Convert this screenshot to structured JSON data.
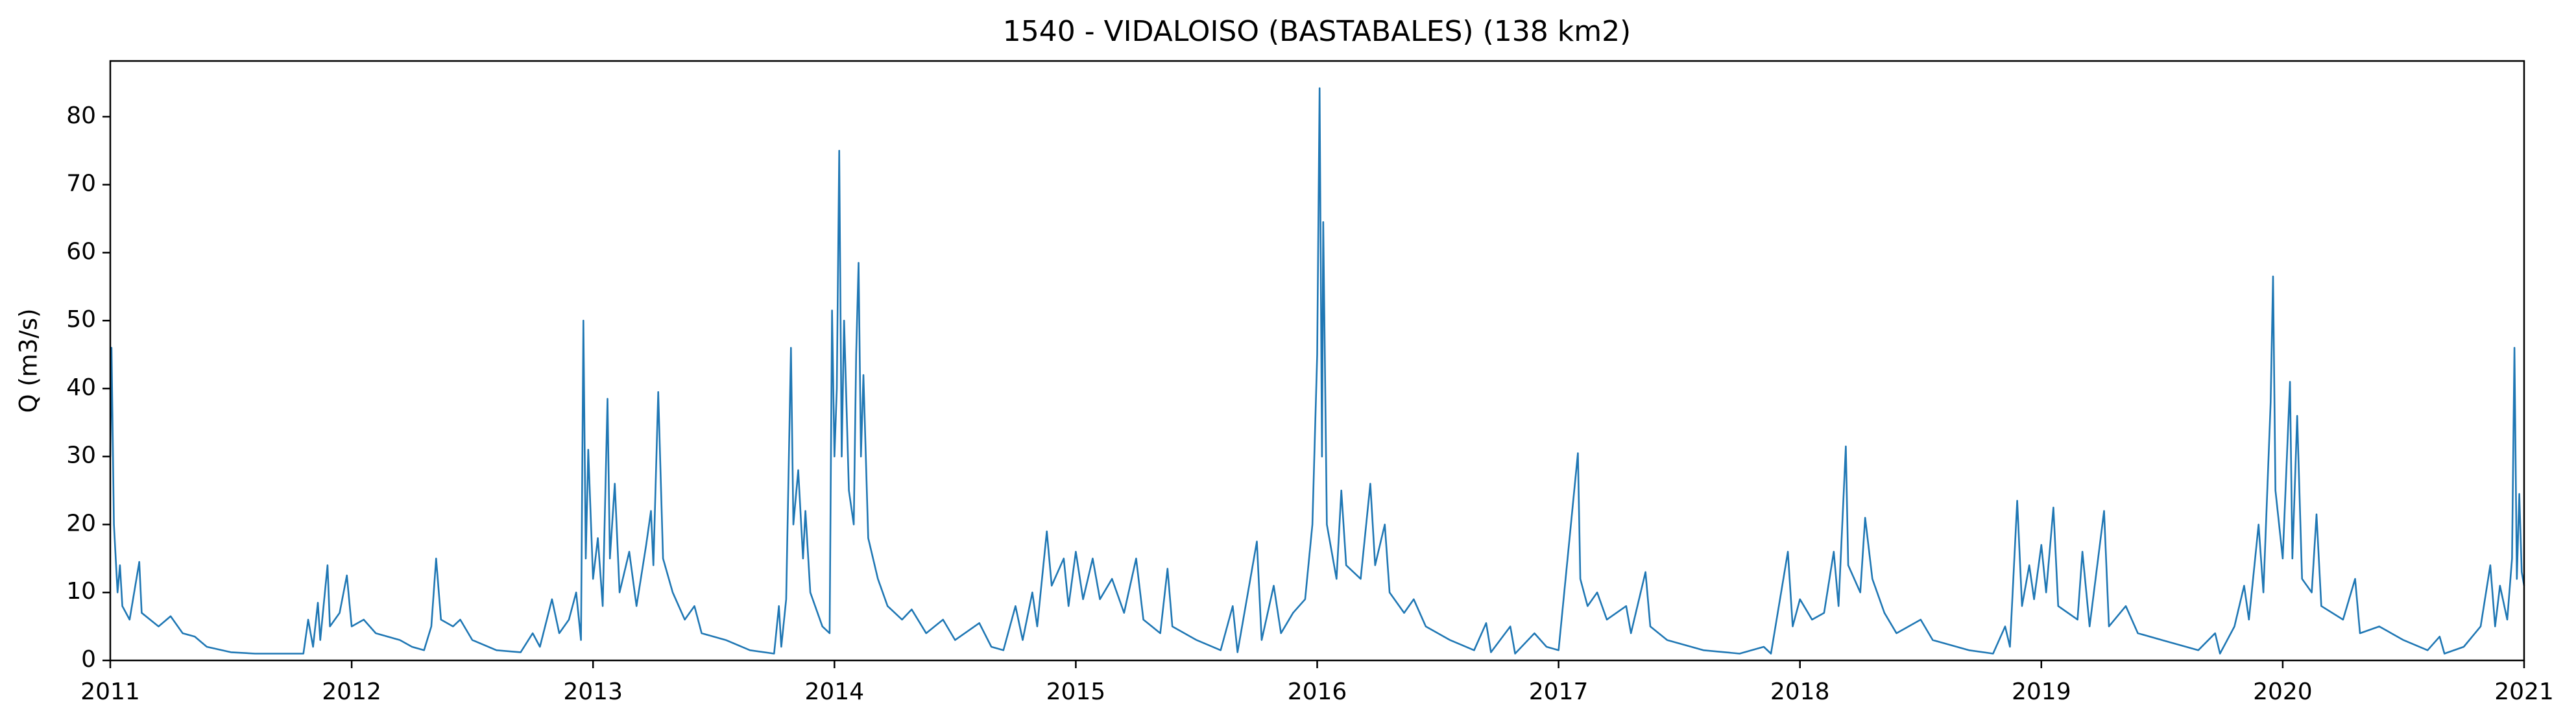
{
  "chart_data": {
    "type": "line",
    "title": "1540 - VIDALOISO (BASTABALES) (138 km2)",
    "y_label": "Q (m3/s)",
    "xlim": [
      2011,
      2021
    ],
    "xticks": [
      2011,
      2012,
      2013,
      2014,
      2015,
      2016,
      2017,
      2018,
      2019,
      2020,
      2021
    ],
    "ylim": [
      0,
      88.2
    ],
    "yticks": [
      0,
      10,
      20,
      30,
      40,
      50,
      60,
      70,
      80
    ],
    "grid": false,
    "x": [
      2011.0,
      2011.005,
      2011.015,
      2011.03,
      2011.04,
      2011.05,
      2011.08,
      2011.12,
      2011.13,
      2011.2,
      2011.25,
      2011.3,
      2011.35,
      2011.4,
      2011.5,
      2011.6,
      2011.7,
      2011.8,
      2011.82,
      2011.84,
      2011.86,
      2011.87,
      2011.9,
      2011.91,
      2011.95,
      2011.98,
      2012.0,
      2012.05,
      2012.1,
      2012.2,
      2012.25,
      2012.3,
      2012.33,
      2012.35,
      2012.37,
      2012.42,
      2012.45,
      2012.5,
      2012.6,
      2012.7,
      2012.75,
      2012.78,
      2012.83,
      2012.86,
      2012.9,
      2012.93,
      2012.95,
      2012.96,
      2012.97,
      2012.98,
      2013.0,
      2013.02,
      2013.04,
      2013.06,
      2013.07,
      2013.09,
      2013.11,
      2013.15,
      2013.18,
      2013.22,
      2013.24,
      2013.25,
      2013.27,
      2013.29,
      2013.33,
      2013.38,
      2013.42,
      2013.45,
      2013.55,
      2013.65,
      2013.75,
      2013.77,
      2013.78,
      2013.8,
      2013.82,
      2013.83,
      2013.85,
      2013.87,
      2013.88,
      2013.9,
      2013.95,
      2013.98,
      2013.99,
      2014.0,
      2014.01,
      2014.02,
      2014.03,
      2014.04,
      2014.06,
      2014.08,
      2014.09,
      2014.1,
      2014.11,
      2014.12,
      2014.14,
      2014.18,
      2014.22,
      2014.28,
      2014.32,
      2014.38,
      2014.45,
      2014.5,
      2014.6,
      2014.65,
      2014.7,
      2014.75,
      2014.78,
      2014.82,
      2014.84,
      2014.88,
      2014.9,
      2014.95,
      2014.97,
      2015.0,
      2015.03,
      2015.07,
      2015.1,
      2015.15,
      2015.2,
      2015.25,
      2015.28,
      2015.35,
      2015.38,
      2015.4,
      2015.5,
      2015.6,
      2015.65,
      2015.67,
      2015.75,
      2015.77,
      2015.82,
      2015.85,
      2015.9,
      2015.95,
      2015.98,
      2016.0,
      2016.01,
      2016.02,
      2016.025,
      2016.04,
      2016.08,
      2016.1,
      2016.12,
      2016.18,
      2016.22,
      2016.24,
      2016.28,
      2016.3,
      2016.36,
      2016.4,
      2016.45,
      2016.55,
      2016.65,
      2016.7,
      2016.72,
      2016.8,
      2016.82,
      2016.9,
      2016.95,
      2017.0,
      2017.08,
      2017.09,
      2017.12,
      2017.16,
      2017.2,
      2017.28,
      2017.3,
      2017.36,
      2017.38,
      2017.45,
      2017.6,
      2017.75,
      2017.85,
      2017.88,
      2017.95,
      2017.97,
      2018.0,
      2018.05,
      2018.1,
      2018.14,
      2018.16,
      2018.19,
      2018.2,
      2018.25,
      2018.27,
      2018.3,
      2018.35,
      2018.4,
      2018.5,
      2018.55,
      2018.7,
      2018.8,
      2018.85,
      2018.87,
      2018.9,
      2018.92,
      2018.95,
      2018.97,
      2019.0,
      2019.02,
      2019.05,
      2019.07,
      2019.15,
      2019.17,
      2019.2,
      2019.26,
      2019.28,
      2019.35,
      2019.4,
      2019.5,
      2019.65,
      2019.72,
      2019.74,
      2019.8,
      2019.84,
      2019.86,
      2019.9,
      2019.92,
      2019.95,
      2019.96,
      2019.97,
      2020.0,
      2020.03,
      2020.04,
      2020.06,
      2020.08,
      2020.12,
      2020.14,
      2020.16,
      2020.25,
      2020.3,
      2020.32,
      2020.4,
      2020.5,
      2020.6,
      2020.65,
      2020.67,
      2020.75,
      2020.82,
      2020.86,
      2020.88,
      2020.9,
      2020.93,
      2020.95,
      2020.96,
      2020.97,
      2020.98,
      2020.99,
      2021.0
    ],
    "series": [
      {
        "name": "Q",
        "color": "#1f77b4",
        "values": [
          30,
          46,
          20,
          10,
          14,
          8,
          6,
          14.5,
          7,
          5,
          6.5,
          4,
          3.5,
          2,
          1.2,
          1,
          1,
          1,
          6,
          2,
          8.5,
          3,
          14,
          5,
          7,
          12.5,
          5,
          6,
          4,
          3,
          2,
          1.5,
          5,
          15,
          6,
          5,
          6,
          3,
          1.5,
          1.2,
          4,
          2,
          9,
          4,
          6,
          10,
          3,
          50,
          15,
          31,
          12,
          18,
          8,
          38.5,
          15,
          26,
          10,
          16,
          8,
          17,
          22,
          14,
          39.5,
          15,
          10,
          6,
          8,
          4,
          3,
          1.5,
          1,
          8,
          2,
          9,
          46,
          20,
          28,
          15,
          22,
          10,
          5,
          4,
          51.5,
          30,
          40,
          75,
          30,
          50,
          25,
          20,
          45,
          58.5,
          30,
          42,
          18,
          12,
          8,
          6,
          7.5,
          4,
          6,
          3,
          5.5,
          2,
          1.5,
          8,
          3,
          10,
          5,
          19,
          11,
          15,
          8,
          16,
          9,
          15,
          9,
          12,
          7,
          15,
          6,
          4,
          13.5,
          5,
          3,
          1.5,
          8,
          1.2,
          17.5,
          3,
          11,
          4,
          7,
          9,
          20,
          45,
          84.2,
          30,
          64.5,
          20,
          12,
          25,
          14,
          12,
          26,
          14,
          20,
          10,
          7,
          9,
          5,
          3,
          1.5,
          5.5,
          1.2,
          5,
          1,
          4,
          2,
          1.5,
          30.5,
          12,
          8,
          10,
          6,
          8,
          4,
          13,
          5,
          3,
          1.5,
          1,
          2,
          1,
          16,
          5,
          9,
          6,
          7,
          16,
          8,
          31.5,
          14,
          10,
          21,
          12,
          7,
          4,
          6,
          3,
          1.5,
          1,
          5,
          2,
          23.5,
          8,
          14,
          9,
          17,
          10,
          22.5,
          8,
          6,
          16,
          5,
          22,
          5,
          8,
          4,
          3,
          1.5,
          4,
          1,
          5,
          11,
          6,
          20,
          10,
          38,
          56.5,
          25,
          15,
          41,
          15,
          36,
          12,
          10,
          21.5,
          8,
          6,
          12,
          4,
          5,
          3,
          1.5,
          3.5,
          1,
          2,
          5,
          14,
          5,
          11,
          6,
          15,
          46,
          12,
          24.5,
          13,
          11
        ]
      }
    ]
  }
}
